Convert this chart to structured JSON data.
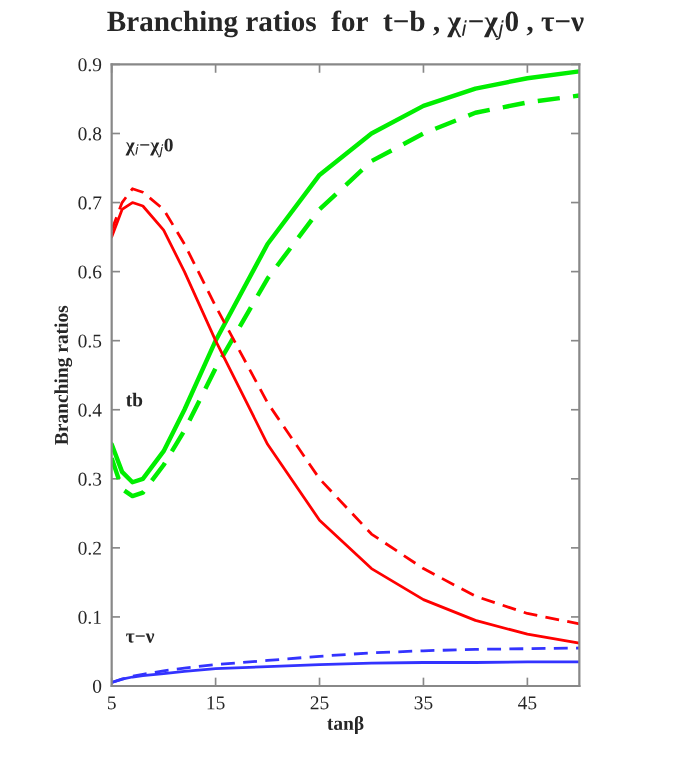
{
  "chart_data": {
    "type": "line",
    "title": "Branching ratios  for  t−b , χ$_{i}$−χ$_{j}$0 , τ−ν",
    "xlabel": "tanβ",
    "ylabel": "Branching ratios",
    "x": [
      5,
      6,
      7,
      8,
      10,
      12,
      15,
      20,
      25,
      30,
      35,
      40,
      45,
      50
    ],
    "series": [
      {
        "color": "#00ee00",
        "line_style": "solid",
        "values": [
          0.35,
          0.31,
          0.295,
          0.3,
          0.34,
          0.4,
          0.5,
          0.64,
          0.74,
          0.8,
          0.84,
          0.865,
          0.88,
          0.89
        ]
      },
      {
        "color": "#00ee00",
        "line_style": "dashed",
        "values": [
          0.33,
          0.285,
          0.275,
          0.28,
          0.32,
          0.37,
          0.46,
          0.59,
          0.69,
          0.76,
          0.8,
          0.83,
          0.845,
          0.855
        ]
      },
      {
        "color": "#ff0000",
        "line_style": "solid",
        "values": [
          0.65,
          0.69,
          0.7,
          0.695,
          0.66,
          0.6,
          0.5,
          0.35,
          0.24,
          0.17,
          0.125,
          0.095,
          0.075,
          0.062
        ]
      },
      {
        "color": "#ff0000",
        "line_style": "dashed",
        "values": [
          0.66,
          0.7,
          0.72,
          0.715,
          0.69,
          0.64,
          0.55,
          0.41,
          0.3,
          0.22,
          0.17,
          0.13,
          0.105,
          0.09
        ]
      },
      {
        "color": "#3333ff",
        "line_style": "solid",
        "values": [
          0.005,
          0.01,
          0.013,
          0.015,
          0.018,
          0.021,
          0.025,
          0.028,
          0.031,
          0.033,
          0.034,
          0.034,
          0.035,
          0.035
        ]
      },
      {
        "color": "#3333ff",
        "line_style": "dashed",
        "values": [
          0.005,
          0.01,
          0.014,
          0.017,
          0.022,
          0.026,
          0.031,
          0.037,
          0.043,
          0.048,
          0.051,
          0.053,
          0.054,
          0.055
        ]
      }
    ],
    "annotations": [
      "χ$_{i}$−χ$_{j}$0",
      "tb",
      "τ−ν"
    ],
    "xlim": [
      5,
      50
    ],
    "ylim": [
      0,
      0.9
    ],
    "xticks": [
      5,
      15,
      25,
      35,
      45
    ],
    "yticks": [
      0,
      0.1,
      0.2,
      0.3,
      0.4,
      0.5,
      0.6,
      0.7,
      0.8,
      0.9
    ],
    "grid": false,
    "legend": false,
    "marker": "none"
  }
}
